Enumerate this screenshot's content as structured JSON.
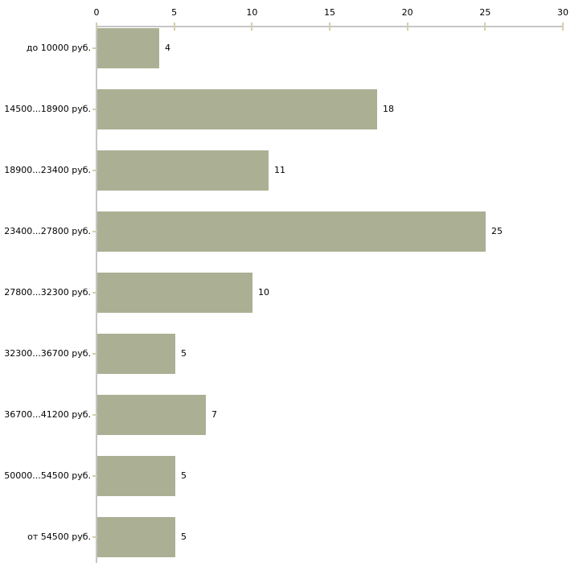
{
  "chart_data": {
    "type": "bar",
    "orientation": "horizontal",
    "title": "",
    "xlabel": "",
    "ylabel": "",
    "categories": [
      "до 10000 руб.",
      "14500...18900 руб.",
      "18900...23400 руб.",
      "23400...27800 руб.",
      "27800...32300 руб.",
      "32300...36700 руб.",
      "36700...41200 руб.",
      "50000...54500 руб.",
      "от 54500 руб."
    ],
    "values": [
      4,
      18,
      11,
      25,
      10,
      5,
      7,
      5,
      5
    ],
    "value_labels_shown": true,
    "xlim": [
      0,
      30
    ],
    "xticks": [
      "0",
      "5",
      "10",
      "15",
      "20",
      "25",
      "30"
    ],
    "xtick_values": [
      0,
      5,
      10,
      15,
      20,
      25,
      30
    ],
    "axis_position": "top",
    "grid": false,
    "legend": false,
    "colors": {
      "bar_fill": "#abb094",
      "axis_line": "#c6c6c6",
      "tick_mark": "#d4cfab",
      "category_tick_mark": "#d6ccb2",
      "text": "#000000",
      "background": "#ffffff"
    }
  }
}
